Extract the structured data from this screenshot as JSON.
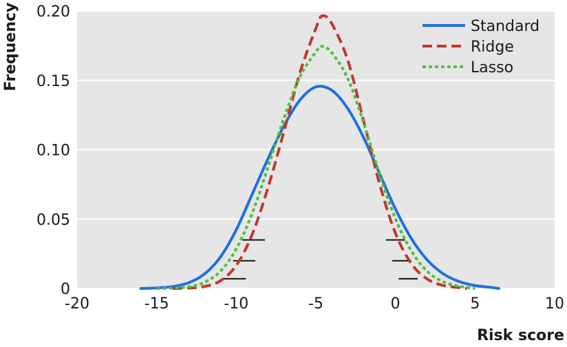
{
  "chart_data": {
    "type": "line",
    "xlabel": "Risk score",
    "ylabel": "Frequency",
    "xlim": [
      -20,
      10
    ],
    "ylim": [
      0,
      0.2
    ],
    "x_ticks": [
      -20,
      -15,
      -10,
      -5,
      0,
      5,
      10
    ],
    "x_tick_labels": [
      "-20",
      "-15",
      "-10",
      "-5",
      "0",
      "5",
      "10"
    ],
    "y_ticks": [
      0,
      0.05,
      0.1,
      0.15,
      0.2
    ],
    "y_tick_labels": [
      "0",
      "0.05",
      "0.10",
      "0.15",
      "0.20"
    ],
    "grid": "horizontal",
    "background": "#e6e6e6",
    "legend_position": "top-right",
    "series": [
      {
        "name": "Standard",
        "color": "#1f6fe0",
        "dash": "solid",
        "x": [
          -16,
          -15,
          -14,
          -13,
          -12,
          -11,
          -10,
          -9,
          -8,
          -7,
          -6,
          -5,
          -4,
          -3,
          -2,
          -1,
          0,
          1,
          2,
          3,
          4,
          5,
          6,
          6.5
        ],
        "y": [
          0.0,
          0.0004,
          0.0014,
          0.0041,
          0.0104,
          0.0226,
          0.0423,
          0.0679,
          0.0936,
          0.1173,
          0.1358,
          0.1453,
          0.1429,
          0.1298,
          0.1088,
          0.0829,
          0.0573,
          0.036,
          0.0205,
          0.0106,
          0.005,
          0.0021,
          0.0008,
          0.0
        ]
      },
      {
        "name": "Ridge",
        "color": "#c0392b",
        "dash": "dashed",
        "x": [
          -14,
          -13,
          -12,
          -11,
          -10,
          -9,
          -8,
          -7,
          -6,
          -5,
          -4.6,
          -4,
          -3,
          -2,
          -1,
          0,
          1,
          2,
          3,
          4,
          4.5
        ],
        "y": [
          0.0,
          0.0003,
          0.0014,
          0.0055,
          0.0166,
          0.0389,
          0.0729,
          0.1133,
          0.1555,
          0.1875,
          0.1965,
          0.1909,
          0.1647,
          0.1209,
          0.0755,
          0.0399,
          0.0179,
          0.0068,
          0.0022,
          0.0006,
          0.0
        ]
      },
      {
        "name": "Lasso",
        "color": "#4fbf3f",
        "dash": "dotted",
        "x": [
          -15,
          -14,
          -13,
          -12,
          -11,
          -10,
          -9,
          -8,
          -7,
          -6,
          -5,
          -4.6,
          -4,
          -3,
          -2,
          -1,
          0,
          1,
          2,
          3,
          4,
          5
        ],
        "y": [
          0.0,
          0.0003,
          0.0012,
          0.0044,
          0.0124,
          0.0285,
          0.0541,
          0.0877,
          0.1229,
          0.1525,
          0.1705,
          0.1745,
          0.1699,
          0.1515,
          0.1195,
          0.0825,
          0.0503,
          0.0271,
          0.0123,
          0.0049,
          0.0016,
          0.0
        ]
      }
    ],
    "marker_segments": [
      {
        "x": [
          -10.8,
          -9.4
        ],
        "y": 0.007
      },
      {
        "x": [
          -10.2,
          -8.8
        ],
        "y": 0.02
      },
      {
        "x": [
          -9.6,
          -8.2
        ],
        "y": 0.035
      },
      {
        "x": [
          -0.6,
          0.6
        ],
        "y": 0.035
      },
      {
        "x": [
          -0.2,
          1.0
        ],
        "y": 0.02
      },
      {
        "x": [
          0.2,
          1.4
        ],
        "y": 0.007
      }
    ]
  }
}
